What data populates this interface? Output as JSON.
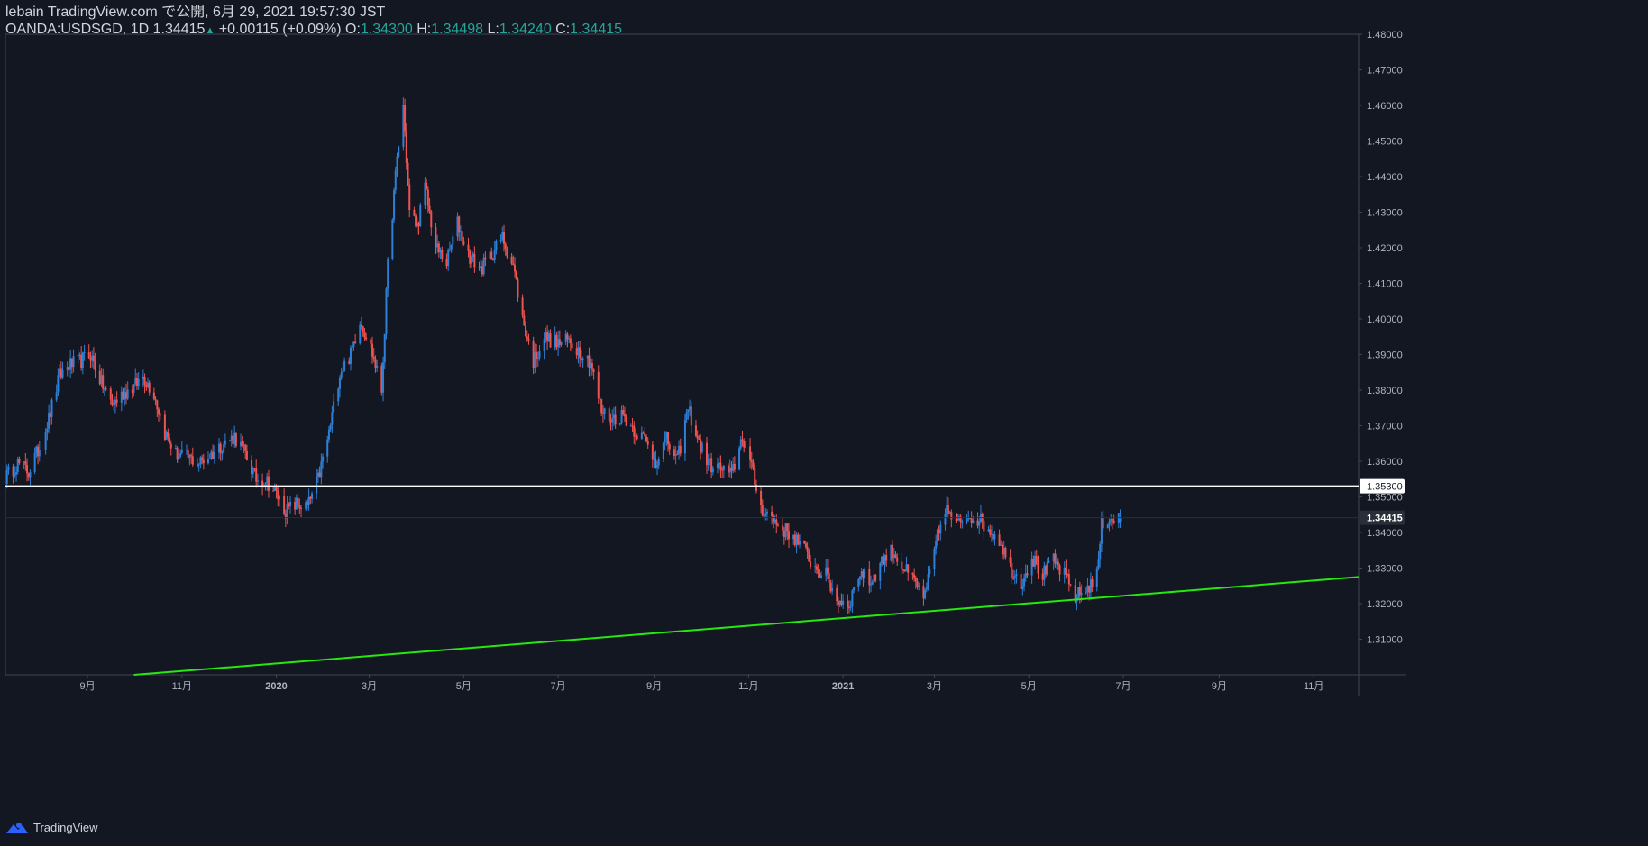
{
  "header": {
    "published": "lebain TradingView.com で公開, 6月 29, 2021 19:57:30 JST",
    "symbol_line": "OANDA:USDSGD, 1D",
    "last": "1.34415",
    "change_arrow": "▲",
    "change": "+0.00115 (+0.09%)",
    "o_label": "O:",
    "o_value": "1.34300",
    "h_label": "H:",
    "h_value": "1.34498",
    "l_label": "L:",
    "l_value": "1.34240",
    "c_label": "C:",
    "c_value": "1.34415"
  },
  "footer": {
    "brand": "TradingView"
  },
  "colors": {
    "background": "#131722",
    "up_candle": "#2e7fd6",
    "down_candle": "#ef5350",
    "support_line": "#27e80f",
    "resistance_line": "#ffffff",
    "axis_text": "#b2b5be",
    "axis_line": "#434651"
  },
  "chart_data": {
    "type": "candlestick",
    "symbol": "OANDA:USDSGD",
    "interval": "1D",
    "ylim": [
      1.3,
      1.48
    ],
    "y_ticks": [
      "1.31000",
      "1.32000",
      "1.33000",
      "1.34000",
      "1.35000",
      "1.36000",
      "1.37000",
      "1.38000",
      "1.39000",
      "1.40000",
      "1.41000",
      "1.42000",
      "1.43000",
      "1.44000",
      "1.45000",
      "1.46000",
      "1.47000",
      "1.48000"
    ],
    "x_ticks": [
      {
        "label": "9月",
        "date": "2019-09-01"
      },
      {
        "label": "11月",
        "date": "2019-11-01"
      },
      {
        "label": "2020",
        "date": "2020-01-01",
        "bold": true
      },
      {
        "label": "3月",
        "date": "2020-03-01"
      },
      {
        "label": "5月",
        "date": "2020-05-01"
      },
      {
        "label": "7月",
        "date": "2020-07-01"
      },
      {
        "label": "9月",
        "date": "2020-09-01"
      },
      {
        "label": "11月",
        "date": "2020-11-01"
      },
      {
        "label": "2021",
        "date": "2021-01-01",
        "bold": true
      },
      {
        "label": "3月",
        "date": "2021-03-01"
      },
      {
        "label": "5月",
        "date": "2021-05-01"
      },
      {
        "label": "7月",
        "date": "2021-07-01"
      },
      {
        "label": "9月",
        "date": "2021-09-01"
      },
      {
        "label": "11月",
        "date": "2021-11-01"
      }
    ],
    "xlim": [
      "2019-07-10",
      "2021-11-30"
    ],
    "close_path": [
      [
        "2019-07-10",
        1.3555
      ],
      [
        "2019-07-18",
        1.3595
      ],
      [
        "2019-07-25",
        1.357
      ],
      [
        "2019-08-01",
        1.364
      ],
      [
        "2019-08-07",
        1.372
      ],
      [
        "2019-08-14",
        1.384
      ],
      [
        "2019-08-20",
        1.387
      ],
      [
        "2019-08-27",
        1.388
      ],
      [
        "2019-09-03",
        1.39
      ],
      [
        "2019-09-10",
        1.382
      ],
      [
        "2019-09-17",
        1.376
      ],
      [
        "2019-09-24",
        1.379
      ],
      [
        "2019-10-01",
        1.381
      ],
      [
        "2019-10-07",
        1.384
      ],
      [
        "2019-10-14",
        1.379
      ],
      [
        "2019-10-21",
        1.368
      ],
      [
        "2019-10-28",
        1.362
      ],
      [
        "2019-11-05",
        1.361
      ],
      [
        "2019-11-12",
        1.3595
      ],
      [
        "2019-11-20",
        1.362
      ],
      [
        "2019-11-28",
        1.365
      ],
      [
        "2019-12-05",
        1.367
      ],
      [
        "2019-12-12",
        1.362
      ],
      [
        "2019-12-19",
        1.355
      ],
      [
        "2019-12-26",
        1.3545
      ],
      [
        "2020-01-02",
        1.35
      ],
      [
        "2020-01-07",
        1.346
      ],
      [
        "2020-01-14",
        1.348
      ],
      [
        "2020-01-21",
        1.347
      ],
      [
        "2020-01-28",
        1.355
      ],
      [
        "2020-02-04",
        1.368
      ],
      [
        "2020-02-11",
        1.385
      ],
      [
        "2020-02-18",
        1.39
      ],
      [
        "2020-02-24",
        1.4
      ],
      [
        "2020-03-02",
        1.392
      ],
      [
        "2020-03-09",
        1.38
      ],
      [
        "2020-03-13",
        1.415
      ],
      [
        "2020-03-19",
        1.445
      ],
      [
        "2020-03-23",
        1.46
      ],
      [
        "2020-03-27",
        1.43
      ],
      [
        "2020-04-01",
        1.426
      ],
      [
        "2020-04-06",
        1.437
      ],
      [
        "2020-04-13",
        1.42
      ],
      [
        "2020-04-20",
        1.416
      ],
      [
        "2020-04-27",
        1.427
      ],
      [
        "2020-05-04",
        1.418
      ],
      [
        "2020-05-12",
        1.414
      ],
      [
        "2020-05-19",
        1.418
      ],
      [
        "2020-05-26",
        1.423
      ],
      [
        "2020-06-02",
        1.415
      ],
      [
        "2020-06-08",
        1.4
      ],
      [
        "2020-06-15",
        1.388
      ],
      [
        "2020-06-22",
        1.395
      ],
      [
        "2020-07-01",
        1.393
      ],
      [
        "2020-07-08",
        1.394
      ],
      [
        "2020-07-15",
        1.391
      ],
      [
        "2020-07-22",
        1.388
      ],
      [
        "2020-07-29",
        1.374
      ],
      [
        "2020-08-05",
        1.372
      ],
      [
        "2020-08-12",
        1.373
      ],
      [
        "2020-08-19",
        1.369
      ],
      [
        "2020-08-26",
        1.366
      ],
      [
        "2020-09-02",
        1.36
      ],
      [
        "2020-09-09",
        1.366
      ],
      [
        "2020-09-16",
        1.36
      ],
      [
        "2020-09-23",
        1.375
      ],
      [
        "2020-09-30",
        1.365
      ],
      [
        "2020-10-07",
        1.359
      ],
      [
        "2020-10-14",
        1.358
      ],
      [
        "2020-10-21",
        1.356
      ],
      [
        "2020-10-28",
        1.367
      ],
      [
        "2020-11-03",
        1.358
      ],
      [
        "2020-11-09",
        1.347
      ],
      [
        "2020-11-16",
        1.344
      ],
      [
        "2020-11-23",
        1.341
      ],
      [
        "2020-11-30",
        1.339
      ],
      [
        "2020-12-07",
        1.335
      ],
      [
        "2020-12-14",
        1.33
      ],
      [
        "2020-12-21",
        1.328
      ],
      [
        "2020-12-28",
        1.321
      ],
      [
        "2021-01-05",
        1.32
      ],
      [
        "2021-01-12",
        1.329
      ],
      [
        "2021-01-19",
        1.326
      ],
      [
        "2021-01-26",
        1.332
      ],
      [
        "2021-02-02",
        1.335
      ],
      [
        "2021-02-09",
        1.33
      ],
      [
        "2021-02-16",
        1.326
      ],
      [
        "2021-02-23",
        1.322
      ],
      [
        "2021-03-02",
        1.337
      ],
      [
        "2021-03-08",
        1.347
      ],
      [
        "2021-03-15",
        1.342
      ],
      [
        "2021-03-22",
        1.345
      ],
      [
        "2021-03-29",
        1.344
      ],
      [
        "2021-04-05",
        1.341
      ],
      [
        "2021-04-12",
        1.338
      ],
      [
        "2021-04-19",
        1.33
      ],
      [
        "2021-04-26",
        1.326
      ],
      [
        "2021-05-03",
        1.333
      ],
      [
        "2021-05-10",
        1.328
      ],
      [
        "2021-05-17",
        1.332
      ],
      [
        "2021-05-24",
        1.328
      ],
      [
        "2021-05-31",
        1.322
      ],
      [
        "2021-06-07",
        1.324
      ],
      [
        "2021-06-14",
        1.328
      ],
      [
        "2021-06-17",
        1.342
      ],
      [
        "2021-06-21",
        1.344
      ],
      [
        "2021-06-29",
        1.34415
      ]
    ],
    "horizontal_line": {
      "price": 1.353,
      "label": "1.35300"
    },
    "last_price": {
      "price": 1.34415,
      "label": "1.34415"
    },
    "trend_line": {
      "from": [
        "2019-10-01",
        1.3
      ],
      "to": [
        "2021-11-30",
        1.3275
      ]
    }
  }
}
